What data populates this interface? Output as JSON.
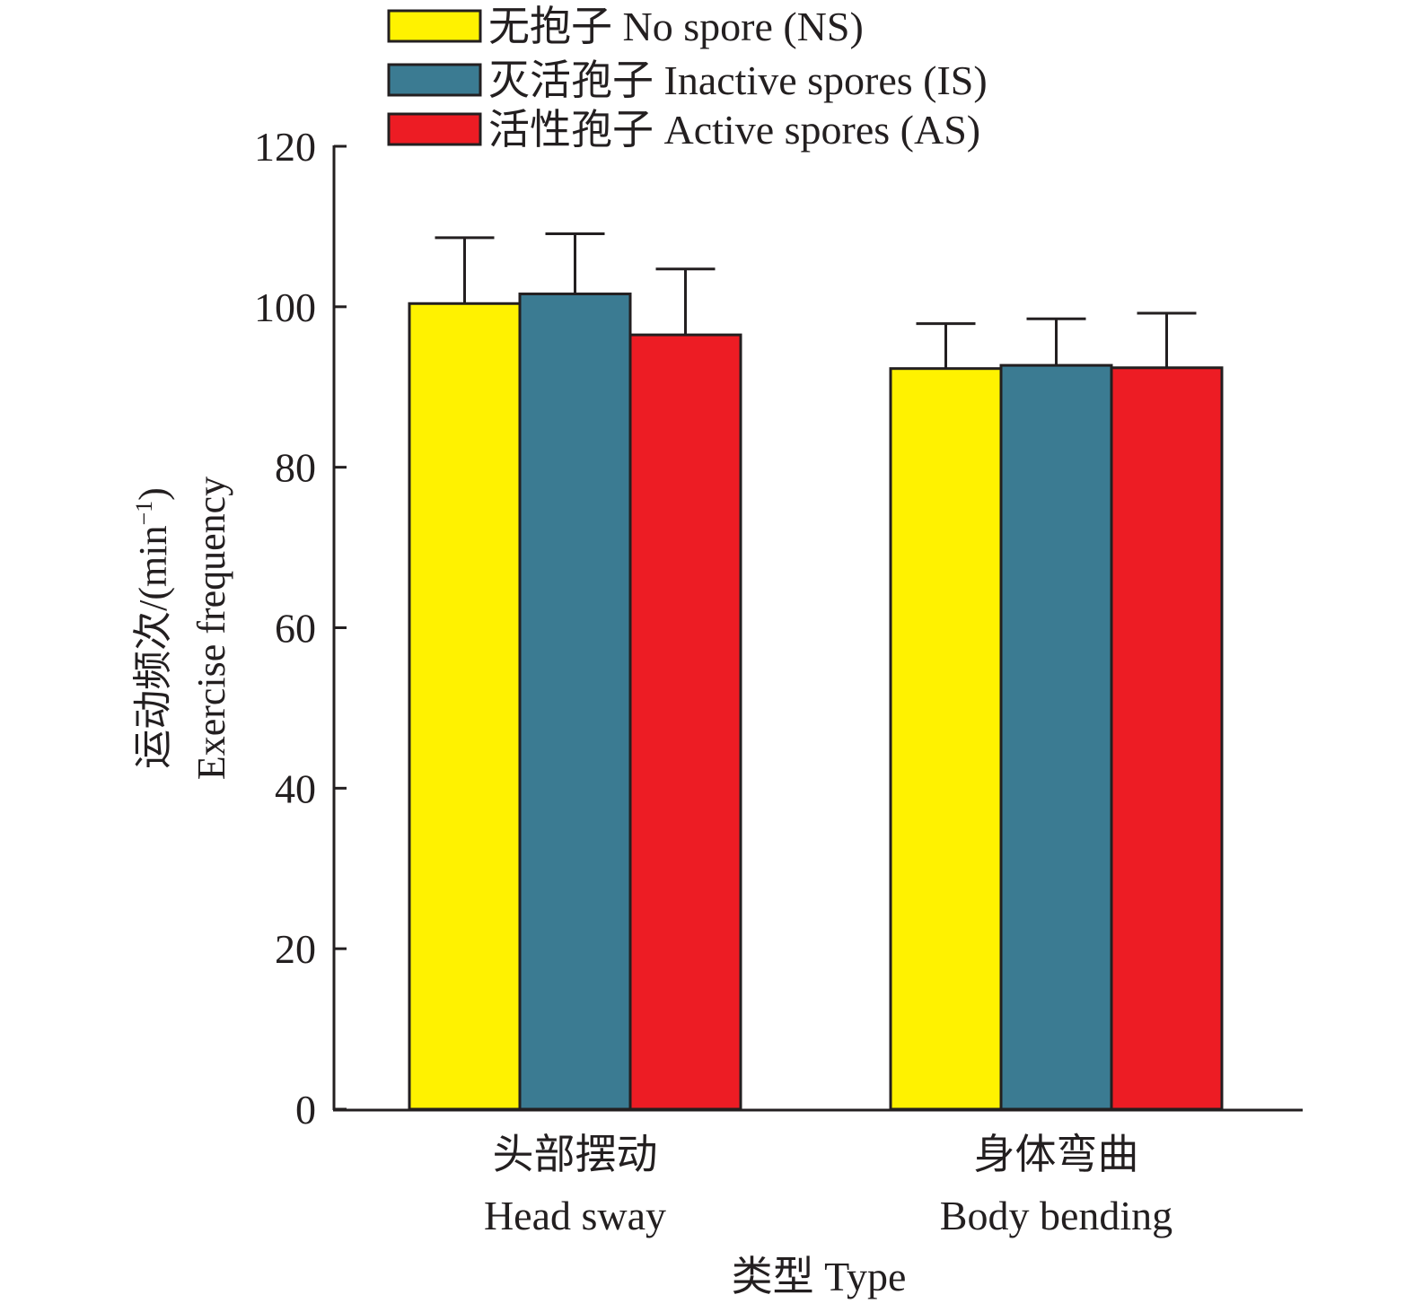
{
  "chart_data": {
    "type": "bar",
    "categories": [
      {
        "zh": "头部摆动",
        "en": "Head sway"
      },
      {
        "zh": "身体弯曲",
        "en": "Body bending"
      }
    ],
    "series": [
      {
        "name": "无抱子 No spore (NS)",
        "color": "#fff200",
        "values": [
          100.4,
          92.3
        ],
        "errors": [
          8.2,
          5.6
        ]
      },
      {
        "name": "灭活孢子 Inactive spores (IS)",
        "color": "#3b7b92",
        "values": [
          101.6,
          92.7
        ],
        "errors": [
          7.5,
          5.8
        ]
      },
      {
        "name": "活性孢子 Active spores (AS)",
        "color": "#ed1c24",
        "values": [
          96.5,
          92.4
        ],
        "errors": [
          8.2,
          6.8
        ]
      }
    ],
    "xlabel": "类型 Type",
    "ylabel_zh": "运动频次/(min",
    "ylabel_sup": "−1",
    "ylabel_close": ")",
    "ylabel_en": "Exercise frequency",
    "ylim": [
      0,
      120
    ],
    "yticks": [
      "0",
      "20",
      "40",
      "60",
      "80",
      "100",
      "120"
    ],
    "grid": false,
    "legend_position": "top"
  }
}
